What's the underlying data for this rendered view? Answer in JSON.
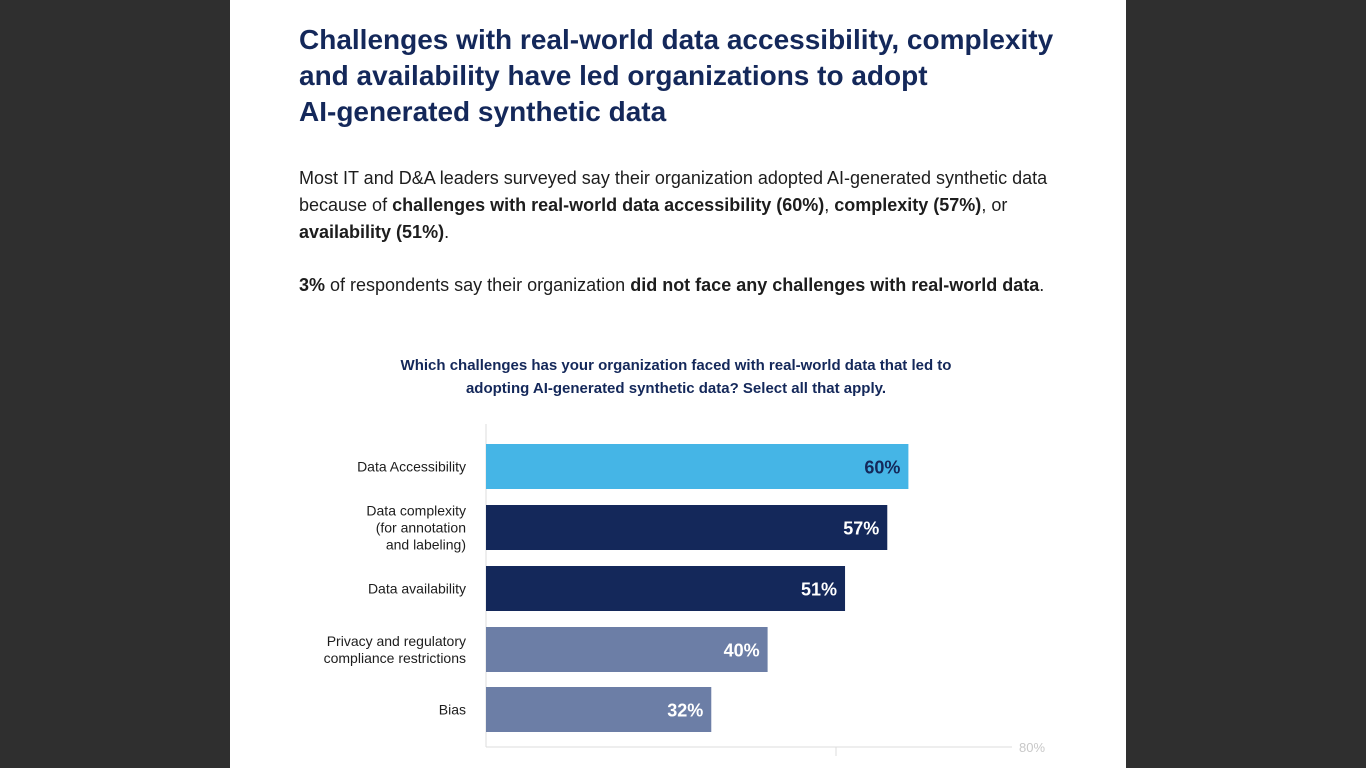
{
  "headline": {
    "line1": "Challenges with real-world data accessibility, complexity",
    "line2": "and availability have led organizations to adopt",
    "line3": "AI-generated synthetic data"
  },
  "intro": {
    "p1_a": "Most IT and D&A leaders surveyed say their organization adopted AI-generated synthetic data because of ",
    "p1_b": "challenges with real-world data accessibility (60%)",
    "p1_c": ", ",
    "p1_d": "complexity (57%)",
    "p1_e": ", or ",
    "p1_f": "availability (51%)",
    "p1_g": ".",
    "p2_a": "3%",
    "p2_b": " of respondents say their organization ",
    "p2_c": "did not face any challenges with real-world data",
    "p2_d": "."
  },
  "question": {
    "line1": "Which challenges has your organization faced with real-world data that led to",
    "line2": "adopting AI-generated synthetic data? Select all that apply."
  },
  "chart_data": {
    "type": "bar",
    "orientation": "horizontal",
    "categories": [
      [
        "Data Accessibility"
      ],
      [
        "Data complexity",
        "(for annotation",
        "and labeling)"
      ],
      [
        "Data availability"
      ],
      [
        "Privacy and regulatory",
        "compliance restrictions"
      ],
      [
        "Bias"
      ]
    ],
    "values": [
      60,
      57,
      51,
      40,
      32
    ],
    "value_labels": [
      "60%",
      "57%",
      "51%",
      "40%",
      "32%"
    ],
    "colors": [
      "#45b5e6",
      "#14285a",
      "#14285a",
      "#6c7ea6",
      "#6c7ea6"
    ],
    "label_colors": [
      "#14285a",
      "#ffffff",
      "#ffffff",
      "#ffffff",
      "#ffffff"
    ],
    "xlim": [
      0,
      80
    ],
    "x_tick_label": "80%",
    "grid": false
  }
}
